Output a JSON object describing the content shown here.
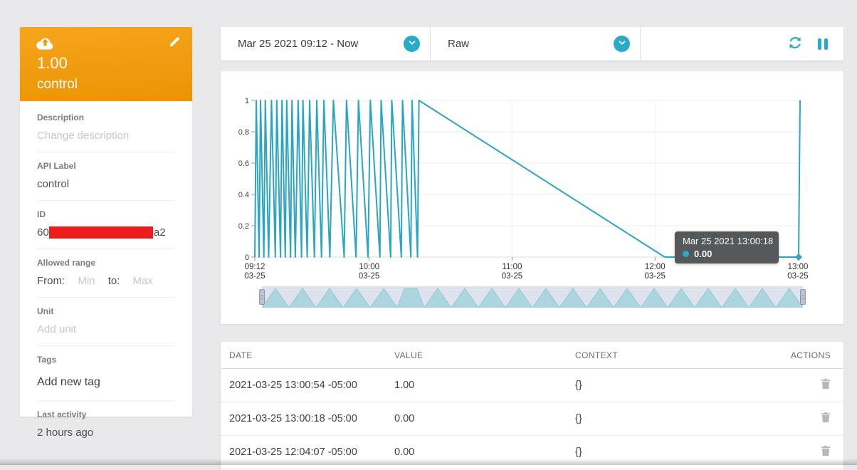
{
  "colors": {
    "accent": "#29abc8",
    "line": "#2ba5c4",
    "orange_top": "#f6a51c",
    "orange_bottom": "#ec9304",
    "redaction": "#ee1c1c",
    "tooltip_bg": "#55585b",
    "navigator_fill": "#abd6df",
    "navigator_bg": "#dee2ed"
  },
  "sidebar": {
    "header": {
      "value": "1.00",
      "name": "control"
    },
    "description": {
      "label": "Description",
      "placeholder": "Change description"
    },
    "api_label": {
      "label": "API Label",
      "value": "control"
    },
    "id": {
      "label": "ID",
      "prefix": "60",
      "suffix": "9a2"
    },
    "allowed_range": {
      "label": "Allowed range",
      "from_label": "From:",
      "min_placeholder": "Min",
      "to_label": "to:",
      "max_placeholder": "Max"
    },
    "unit": {
      "label": "Unit",
      "placeholder": "Add unit"
    },
    "tags": {
      "label": "Tags",
      "placeholder": "Add new tag"
    },
    "last_activity": {
      "label": "Last activity",
      "value": "2 hours ago"
    }
  },
  "toolbar": {
    "date_range": "Mar 25 2021 09:12 - Now",
    "aggregation": "Raw"
  },
  "tooltip": {
    "title": "Mar 25 2021 13:00:18",
    "value": "0.00"
  },
  "chart_data": {
    "type": "line",
    "title": "",
    "xlabel": "",
    "ylabel": "",
    "ylim": [
      0,
      1
    ],
    "grid": true,
    "x_unit": "minutes after 2021-03-25 09:12",
    "y_ticks": [
      "0",
      "0.2",
      "0.4",
      "0.6",
      "0.8",
      "1"
    ],
    "x_ticks": [
      {
        "t": 0,
        "time": "09:12",
        "date": "03-25"
      },
      {
        "t": 48,
        "time": "10:00",
        "date": "03-25"
      },
      {
        "t": 108,
        "time": "11:00",
        "date": "03-25"
      },
      {
        "t": 168,
        "time": "12:00",
        "date": "03-25"
      },
      {
        "t": 228,
        "time": "13:00",
        "date": "03-25"
      }
    ],
    "points": [
      [
        0,
        0
      ],
      [
        0.6,
        1
      ],
      [
        1.8,
        0
      ],
      [
        2.4,
        1
      ],
      [
        3.8,
        0
      ],
      [
        4.4,
        1
      ],
      [
        5.8,
        0
      ],
      [
        7,
        1
      ],
      [
        8.6,
        0
      ],
      [
        9.2,
        1
      ],
      [
        10.8,
        0
      ],
      [
        11.4,
        1
      ],
      [
        12.8,
        0
      ],
      [
        13.4,
        1
      ],
      [
        15,
        0
      ],
      [
        15.6,
        1
      ],
      [
        17,
        0
      ],
      [
        18.2,
        1
      ],
      [
        19.6,
        0
      ],
      [
        20.2,
        1
      ],
      [
        22,
        0
      ],
      [
        23,
        1
      ],
      [
        25,
        0
      ],
      [
        26,
        1
      ],
      [
        28,
        0
      ],
      [
        29,
        1
      ],
      [
        31.5,
        0
      ],
      [
        33,
        1
      ],
      [
        37.5,
        0
      ],
      [
        38.5,
        1
      ],
      [
        42.5,
        0
      ],
      [
        43.5,
        1
      ],
      [
        47.5,
        0
      ],
      [
        48.5,
        1
      ],
      [
        52.5,
        0
      ],
      [
        53,
        1
      ],
      [
        57,
        0
      ],
      [
        57.5,
        1
      ],
      [
        61.5,
        0
      ],
      [
        62,
        1
      ],
      [
        65.5,
        0
      ],
      [
        66,
        1
      ],
      [
        68.3,
        0
      ],
      [
        68.9,
        1
      ],
      [
        172.1,
        0
      ],
      [
        228.3,
        0
      ],
      [
        228.9,
        1
      ]
    ],
    "hover_point": {
      "t": 228.3,
      "v": 0
    }
  },
  "table": {
    "headers": [
      "DATE",
      "VALUE",
      "CONTEXT",
      "ACTIONS"
    ],
    "rows": [
      {
        "date": "2021-03-25 13:00:54 -05:00",
        "value": "1.00",
        "context": "{}"
      },
      {
        "date": "2021-03-25 13:00:18 -05:00",
        "value": "0.00",
        "context": "{}"
      },
      {
        "date": "2021-03-25 12:04:07 -05:00",
        "value": "0.00",
        "context": "{}"
      }
    ]
  }
}
